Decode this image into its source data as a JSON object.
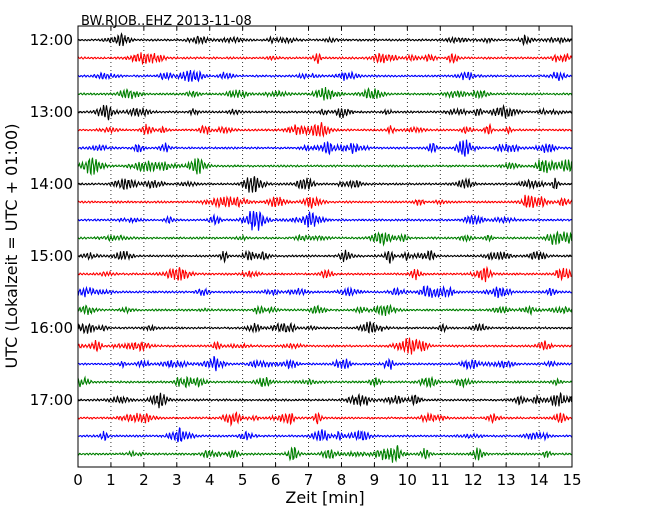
{
  "chart_data": {
    "type": "line",
    "title": "BW.RJOB..EHZ 2013-11-08",
    "xlabel": "Zeit  [min]",
    "ylabel": "UTC (Lokalzeit = UTC + 01:00)",
    "xlim": [
      0,
      15
    ],
    "x_ticks": [
      "0",
      "1",
      "2",
      "3",
      "4",
      "5",
      "6",
      "7",
      "8",
      "9",
      "10",
      "11",
      "12",
      "13",
      "14",
      "15"
    ],
    "y_tick_labels": [
      "12:00",
      "13:00",
      "14:00",
      "15:00",
      "16:00",
      "17:00"
    ],
    "grid": "vertical dotted",
    "trace_colors": [
      "#000000",
      "#ff0000",
      "#0000ff",
      "#008000"
    ],
    "traces": [
      {
        "start": "12:00",
        "color": "#000000"
      },
      {
        "start": "12:15",
        "color": "#ff0000"
      },
      {
        "start": "12:30",
        "color": "#0000ff"
      },
      {
        "start": "12:45",
        "color": "#008000"
      },
      {
        "start": "13:00",
        "color": "#000000"
      },
      {
        "start": "13:15",
        "color": "#ff0000"
      },
      {
        "start": "13:30",
        "color": "#0000ff"
      },
      {
        "start": "13:45",
        "color": "#008000"
      },
      {
        "start": "14:00",
        "color": "#000000"
      },
      {
        "start": "14:15",
        "color": "#ff0000"
      },
      {
        "start": "14:30",
        "color": "#0000ff"
      },
      {
        "start": "14:45",
        "color": "#008000"
      },
      {
        "start": "15:00",
        "color": "#000000"
      },
      {
        "start": "15:15",
        "color": "#ff0000"
      },
      {
        "start": "15:30",
        "color": "#0000ff"
      },
      {
        "start": "15:45",
        "color": "#008000"
      },
      {
        "start": "16:00",
        "color": "#000000"
      },
      {
        "start": "16:15",
        "color": "#ff0000"
      },
      {
        "start": "16:30",
        "color": "#0000ff"
      },
      {
        "start": "16:45",
        "color": "#008000"
      },
      {
        "start": "17:00",
        "color": "#000000"
      },
      {
        "start": "17:15",
        "color": "#ff0000"
      },
      {
        "start": "17:30",
        "color": "#0000ff"
      },
      {
        "start": "17:45",
        "color": "#008000"
      }
    ]
  }
}
